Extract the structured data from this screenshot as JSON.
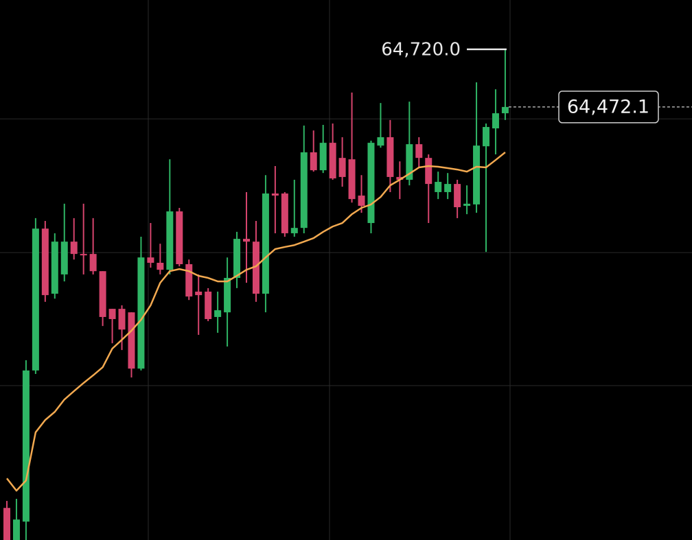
{
  "chart_data": {
    "type": "candlestick",
    "ylim": [
      62610,
      64932
    ],
    "ygrid": [
      63274,
      63846,
      64421
    ],
    "up_color": "#2fb565",
    "down_color": "#d6446d",
    "candles": {
      "open": [
        62748,
        62610,
        62689,
        63339,
        63949,
        63669,
        63752,
        63893,
        63840,
        63840,
        63766,
        63604,
        63604,
        63589,
        63347,
        63825,
        63802,
        63772,
        64023,
        63796,
        63678,
        63678,
        63569,
        63589,
        63737,
        63905,
        63893,
        63669,
        64100,
        64100,
        63929,
        63952,
        64277,
        64200,
        64318,
        64253,
        64247,
        64091,
        63973,
        64306,
        64342,
        64171,
        64159,
        64312,
        64253,
        64106,
        64106,
        64141,
        64047,
        64053,
        64303,
        64380,
        64445
      ],
      "high": [
        62778,
        62787,
        63383,
        63994,
        63982,
        63929,
        64056,
        63994,
        64056,
        63994,
        63766,
        63604,
        63619,
        63589,
        63914,
        63973,
        63884,
        64247,
        64038,
        63816,
        63752,
        63693,
        63678,
        63825,
        63935,
        64106,
        63982,
        64179,
        64218,
        64106,
        64159,
        64392,
        64371,
        64395,
        64401,
        64342,
        64534,
        64179,
        64327,
        64489,
        64416,
        64238,
        64495,
        64342,
        64268,
        64194,
        64188,
        64159,
        64135,
        64578,
        64401,
        64548,
        64720
      ],
      "low": [
        62610,
        62610,
        62610,
        63324,
        63634,
        63648,
        63722,
        63816,
        63752,
        63752,
        63530,
        63456,
        63427,
        63309,
        63339,
        63781,
        63752,
        63752,
        63787,
        63642,
        63492,
        63551,
        63501,
        63442,
        63693,
        63716,
        63634,
        63589,
        63929,
        63914,
        63914,
        63929,
        64194,
        64188,
        64159,
        64129,
        64061,
        64017,
        63929,
        64297,
        64106,
        64076,
        64135,
        64209,
        63973,
        64076,
        64076,
        63994,
        64011,
        64017,
        63849,
        64268,
        64416
      ],
      "close": [
        62610,
        62698,
        63339,
        63949,
        63663,
        63893,
        63893,
        63840,
        63834,
        63766,
        63569,
        63560,
        63515,
        63347,
        63825,
        63802,
        63772,
        64023,
        63796,
        63657,
        63663,
        63560,
        63598,
        63737,
        63905,
        63893,
        63669,
        64100,
        64091,
        63929,
        63952,
        64277,
        64200,
        64318,
        64165,
        64171,
        64076,
        64047,
        64318,
        64342,
        64171,
        64159,
        64312,
        64253,
        64141,
        64150,
        64141,
        64041,
        64056,
        64306,
        64386,
        64445,
        64472.1
      ]
    },
    "ma": {
      "color": "#f2a950",
      "values": [
        62875,
        62822,
        62866,
        63073,
        63126,
        63161,
        63214,
        63250,
        63285,
        63318,
        63353,
        63433,
        63471,
        63510,
        63557,
        63619,
        63716,
        63766,
        63775,
        63766,
        63746,
        63737,
        63722,
        63722,
        63746,
        63772,
        63787,
        63825,
        63861,
        63870,
        63878,
        63893,
        63908,
        63935,
        63958,
        63973,
        64011,
        64038,
        64053,
        64085,
        64135,
        64159,
        64185,
        64212,
        64218,
        64215,
        64209,
        64203,
        64194,
        64215,
        64212,
        64244,
        64277
      ]
    },
    "high_marker": {
      "value": 64720,
      "label": "64,720.0"
    },
    "last_price": {
      "value": 64472.1,
      "label": "64,472.1"
    }
  }
}
